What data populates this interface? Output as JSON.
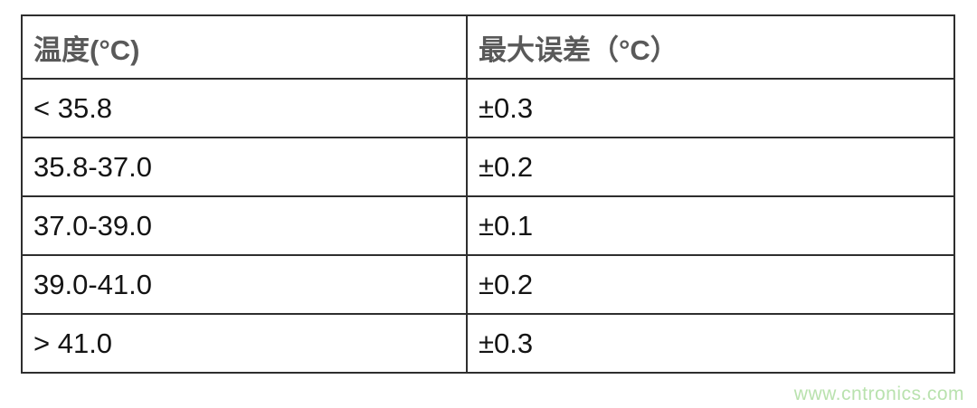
{
  "table": {
    "headers": {
      "temperature": "温度(°C)",
      "max_error": "最大误差（°C）"
    },
    "rows": [
      {
        "range": "< 35.8",
        "error": "±0.3"
      },
      {
        "range": "35.8-37.0",
        "error": "±0.2"
      },
      {
        "range": "37.0-39.0",
        "error": "±0.1"
      },
      {
        "range": "39.0-41.0",
        "error": "±0.2"
      },
      {
        "range": "> 41.0",
        "error": "±0.3"
      }
    ]
  },
  "watermark": "www.cntronics.com",
  "colors": {
    "border": "#2e2e2e",
    "header_text": "#595959",
    "body_text": "#141414",
    "watermark": "#b9e2ae",
    "background": "#ffffff"
  }
}
